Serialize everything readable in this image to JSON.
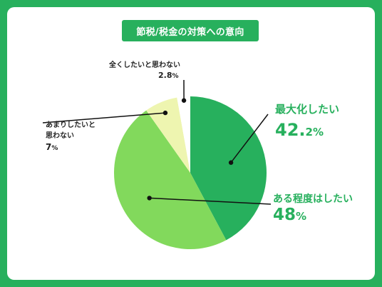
{
  "colors": {
    "background": "#27b05d",
    "card": "#ffffff",
    "title_bg": "#27b05d",
    "text_dark": "#222222",
    "accent_green": "#27b05d"
  },
  "chart_data": {
    "type": "pie",
    "title": "節税/税金の対策への意向",
    "slices": [
      {
        "label": "最大化したい",
        "value": 42.2,
        "display_number": "42.",
        "display_decimal": "2",
        "display_unit": "%",
        "color": "#27b05d"
      },
      {
        "label": "ある程度はしたい",
        "value": 48,
        "display_number": "48",
        "display_decimal": "",
        "display_unit": "%",
        "color": "#82d95c"
      },
      {
        "label": "あまりしたいと思わない",
        "label_line1": "あまりしたいと",
        "label_line2": "思わない",
        "value": 7,
        "display_number": "7",
        "display_decimal": "",
        "display_unit": "%",
        "color": "#eef5b0"
      },
      {
        "label": "全くしたいと思わない",
        "value": 2.8,
        "display_number": "2.8",
        "display_decimal": "",
        "display_unit": "%",
        "color": "#ffffff"
      }
    ],
    "start_angle_deg": 0,
    "direction": "clockwise"
  }
}
